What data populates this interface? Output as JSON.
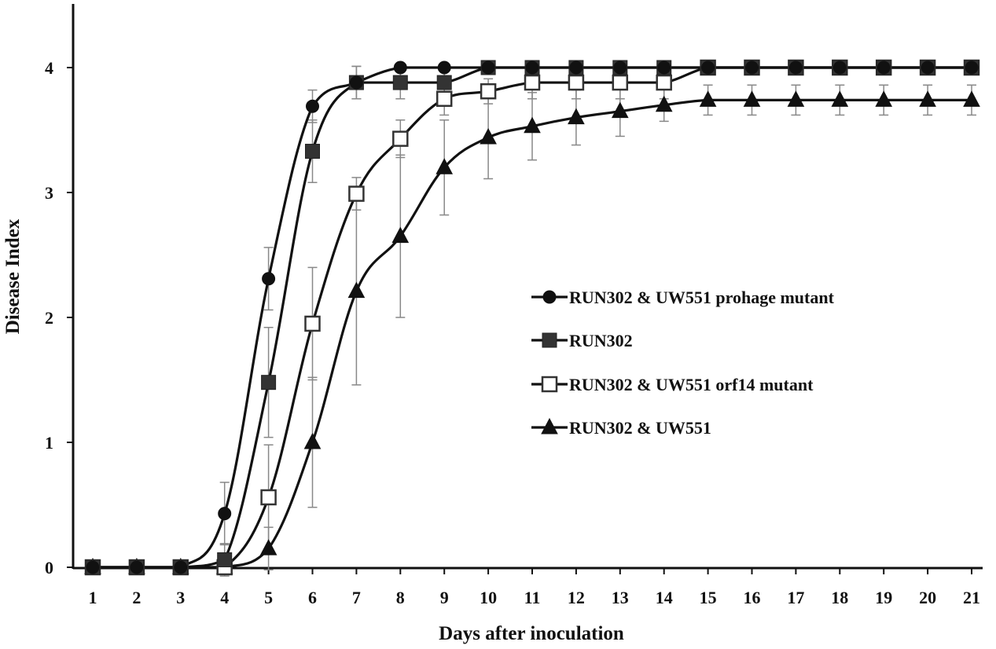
{
  "chart_data": {
    "type": "line",
    "xlabel": "Days after inoculation",
    "ylabel": "Disease Index",
    "x": [
      1,
      2,
      3,
      4,
      5,
      6,
      7,
      8,
      9,
      10,
      11,
      12,
      13,
      14,
      15,
      16,
      17,
      18,
      19,
      20,
      21
    ],
    "xlim": [
      1,
      21
    ],
    "ylim": [
      0,
      4
    ],
    "yticks": [
      "0",
      "1",
      "2",
      "3",
      "4"
    ],
    "xticks": [
      "1",
      "2",
      "3",
      "4",
      "5",
      "6",
      "7",
      "8",
      "9",
      "10",
      "11",
      "12",
      "13",
      "14",
      "15",
      "16",
      "17",
      "18",
      "19",
      "20",
      "21"
    ],
    "grid": false,
    "legend_position": "center-right",
    "series": [
      {
        "name": "RUN302 & UW551 prohage mutant",
        "marker": "circle-filled",
        "color": "#111111",
        "values": [
          0,
          0,
          0,
          0.43,
          2.31,
          3.69,
          3.88,
          4,
          4,
          4,
          4,
          4,
          4,
          4,
          4,
          4,
          4,
          4,
          4,
          4,
          4
        ],
        "errors": [
          0,
          0,
          0,
          0.25,
          0.25,
          0.13,
          0.13,
          0,
          0,
          0,
          0,
          0,
          0,
          0,
          0,
          0,
          0,
          0,
          0,
          0,
          0
        ]
      },
      {
        "name": "RUN302",
        "marker": "square-filled",
        "color": "#333333",
        "values": [
          0,
          0,
          0,
          0.06,
          1.48,
          3.33,
          3.88,
          3.88,
          3.88,
          4,
          4,
          4,
          4,
          4,
          4,
          4,
          4,
          4,
          4,
          4,
          4
        ],
        "errors": [
          0,
          0,
          0,
          0.13,
          0.44,
          0.25,
          0.13,
          0.13,
          0.13,
          0,
          0,
          0,
          0,
          0,
          0,
          0,
          0,
          0,
          0,
          0,
          0
        ]
      },
      {
        "name": "RUN302 & UW551 orf14 mutant",
        "marker": "square-open",
        "color": "#111111",
        "values": [
          0,
          0,
          0,
          0,
          0.56,
          1.95,
          2.99,
          3.43,
          3.75,
          3.81,
          3.88,
          3.88,
          3.88,
          3.88,
          4,
          4,
          4,
          4,
          4,
          4,
          4
        ],
        "errors": [
          0,
          0,
          0,
          0,
          0.42,
          0.45,
          0.13,
          0.15,
          0.13,
          0.1,
          0.13,
          0.13,
          0.13,
          0.13,
          0,
          0,
          0,
          0,
          0,
          0,
          0
        ]
      },
      {
        "name": "RUN302 & UW551",
        "marker": "triangle-filled",
        "color": "#111111",
        "values": [
          0,
          0,
          0,
          0,
          0.15,
          1,
          2.21,
          2.65,
          3.2,
          3.44,
          3.53,
          3.6,
          3.65,
          3.7,
          3.74,
          3.74,
          3.74,
          3.74,
          3.74,
          3.74,
          3.74
        ],
        "errors": [
          0,
          0,
          0,
          0,
          0.17,
          0.52,
          0.75,
          0.65,
          0.38,
          0.33,
          0.27,
          0.22,
          0.2,
          0.13,
          0.12,
          0.12,
          0.12,
          0.12,
          0.12,
          0.12,
          0.12
        ]
      }
    ]
  }
}
